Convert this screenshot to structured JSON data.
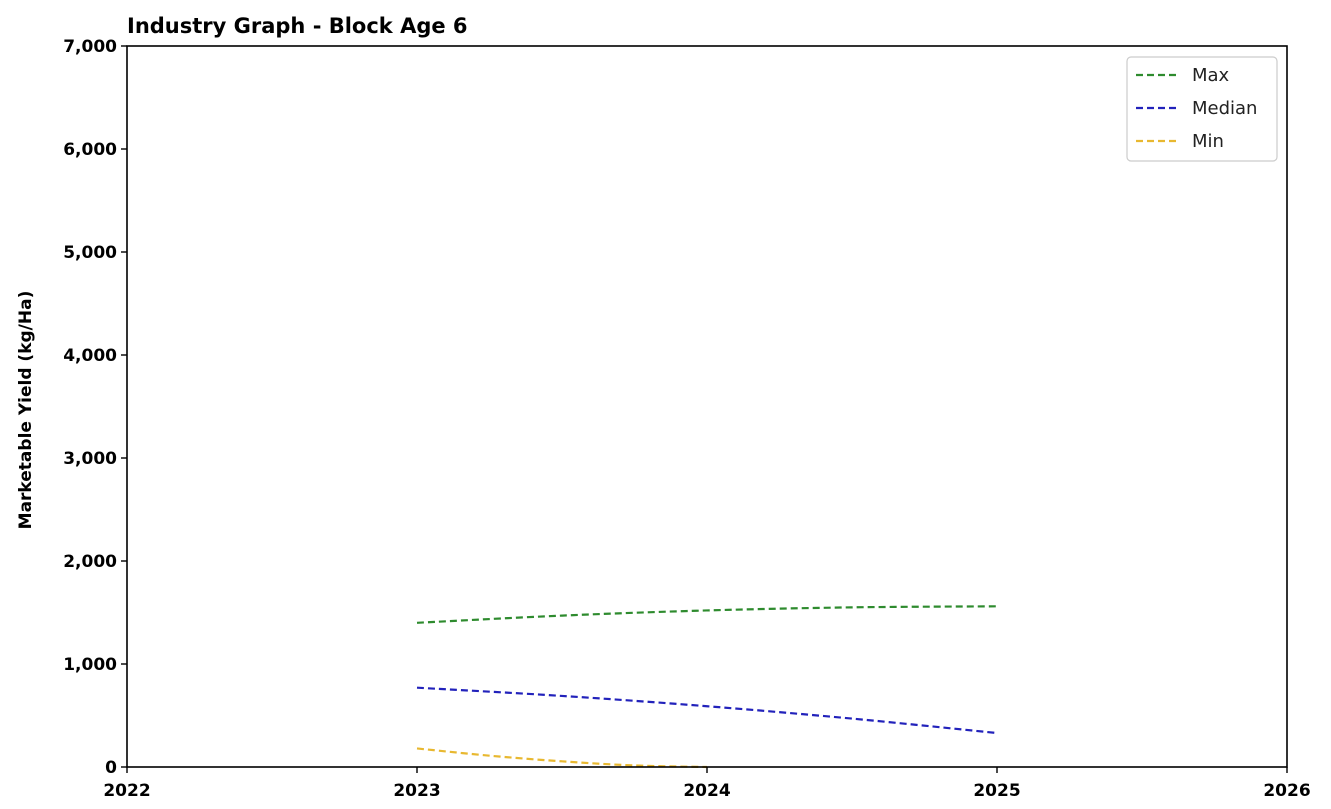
{
  "chart_data": {
    "type": "line",
    "title": "Industry Graph - Block Age 6",
    "xlabel": "",
    "ylabel": "Marketable Yield (kg/Ha)",
    "xlim": [
      2022,
      2026
    ],
    "ylim": [
      0,
      7000
    ],
    "x_ticks": [
      "2022",
      "2023",
      "2024",
      "2025",
      "2026"
    ],
    "y_ticks": [
      "0",
      "1,000",
      "2,000",
      "3,000",
      "4,000",
      "5,000",
      "6,000",
      "7,000"
    ],
    "grid": false,
    "legend_position": "top-right",
    "series": [
      {
        "name": "Max",
        "color": "#2e8b2e",
        "style": "dashed",
        "x": [
          2023,
          2023.5,
          2024,
          2024.5,
          2025
        ],
        "y": [
          1400,
          1470,
          1520,
          1550,
          1560
        ]
      },
      {
        "name": "Median",
        "color": "#2222bb",
        "style": "dashed",
        "x": [
          2023,
          2023.5,
          2024,
          2024.5,
          2025
        ],
        "y": [
          770,
          690,
          590,
          470,
          330
        ]
      },
      {
        "name": "Min",
        "color": "#e8b830",
        "style": "dashed",
        "x": [
          2023,
          2023.25,
          2023.5,
          2023.75,
          2024
        ],
        "y": [
          180,
          110,
          55,
          15,
          0
        ]
      }
    ]
  }
}
